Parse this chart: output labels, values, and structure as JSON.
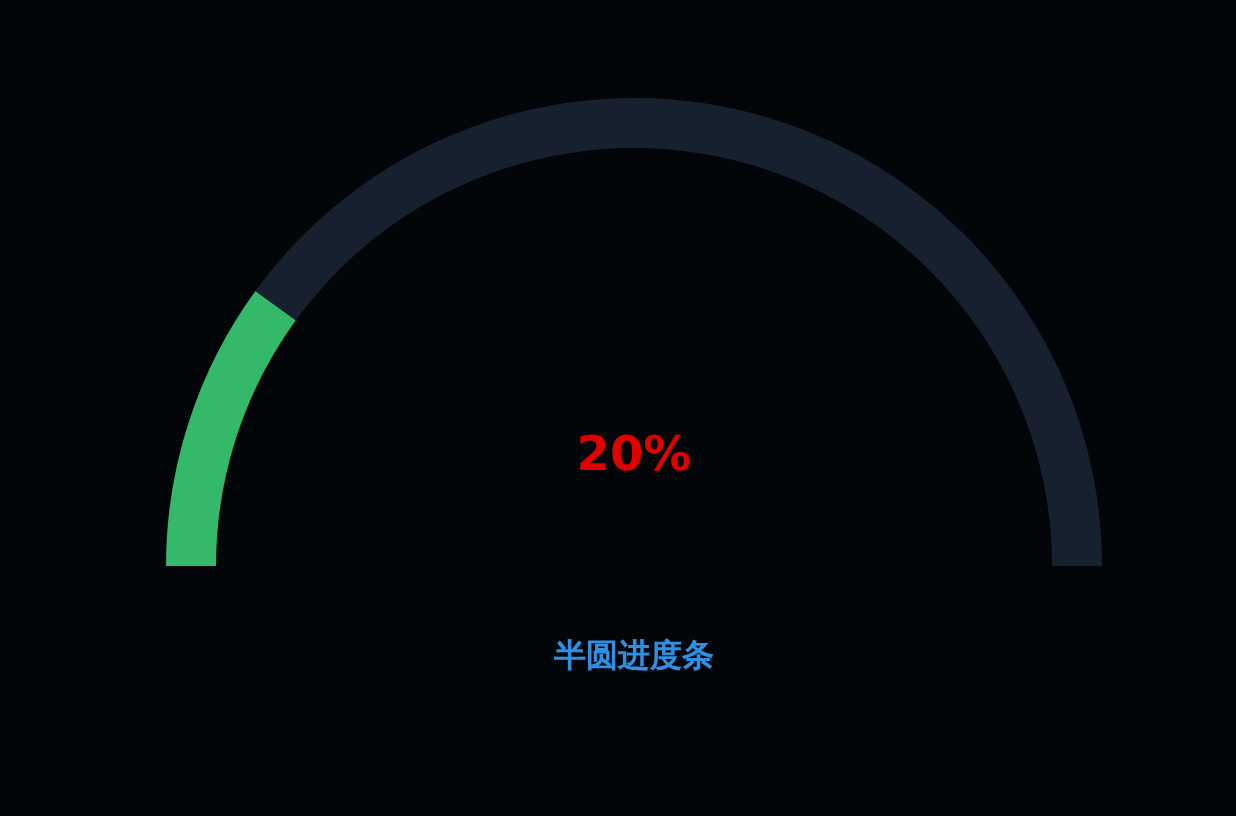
{
  "chart_data": {
    "type": "donut",
    "title": "半圆进度条",
    "categories": [
      null,
      null
    ],
    "values": [
      20,
      80
    ],
    "colors": [
      "#34b96b",
      "#17202f"
    ],
    "annotations": [
      "20%"
    ]
  }
}
